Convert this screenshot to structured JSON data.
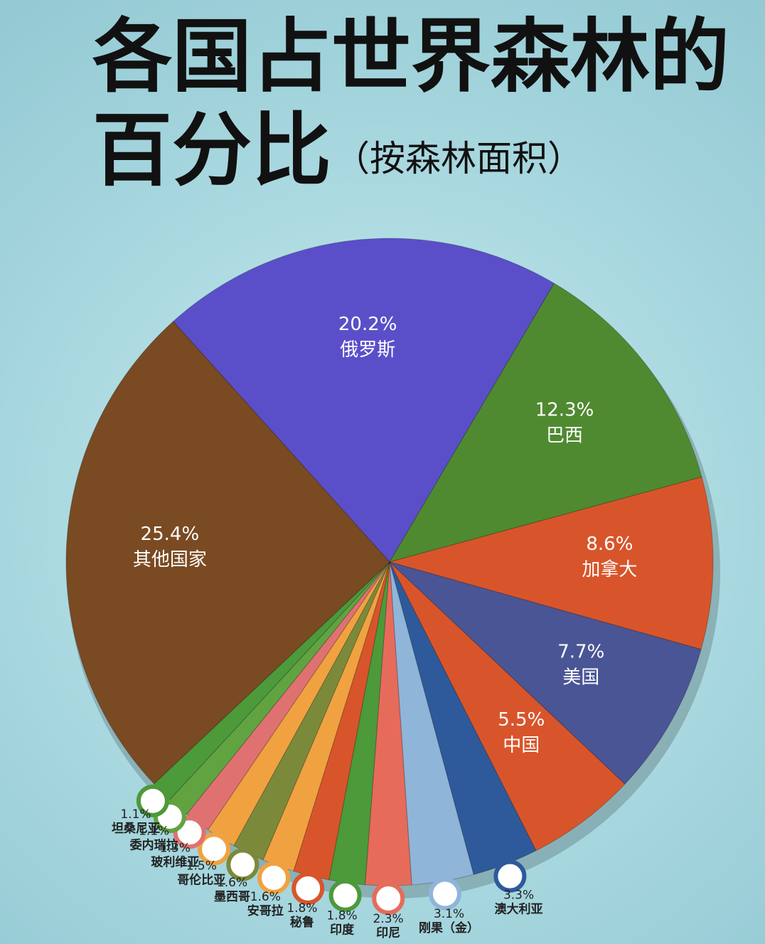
{
  "chart_data": {
    "type": "pie",
    "title": [
      "各国占世界森林的",
      "百分比"
    ],
    "subtitle": "（按森林面积）",
    "categories": [
      "俄罗斯",
      "巴西",
      "加拿大",
      "美国",
      "中国",
      "澳大利亚",
      "刚果（金）",
      "印尼",
      "印度",
      "秘鲁",
      "安哥拉",
      "墨西哥",
      "哥伦比亚",
      "玻利维亚",
      "委内瑞拉",
      "坦桑尼亚",
      "其他国家"
    ],
    "values": [
      20.2,
      12.3,
      8.6,
      7.7,
      5.5,
      3.3,
      3.1,
      2.3,
      1.8,
      1.8,
      1.6,
      1.6,
      1.5,
      1.3,
      1.1,
      1.1,
      25.4
    ],
    "value_labels": [
      "20.2%",
      "12.3%",
      "8.6%",
      "7.7%",
      "5.5%",
      "3.3%",
      "3.1%",
      "2.3%",
      "1.8%",
      "1.8%",
      "1.6%",
      "1.6%",
      "1.5%",
      "1.3%",
      "1.1%",
      "1.1%",
      "25.4%"
    ],
    "colors": [
      "#5b4fc9",
      "#4f8a30",
      "#d8552b",
      "#4a5596",
      "#d8552b",
      "#2e5a9b",
      "#8fb5d9",
      "#e66b5b",
      "#4c9a3a",
      "#d8552b",
      "#f0a241",
      "#7b8a3a",
      "#f0a241",
      "#e07171",
      "#61a341",
      "#4c9a3a",
      "#7a4a22"
    ]
  }
}
